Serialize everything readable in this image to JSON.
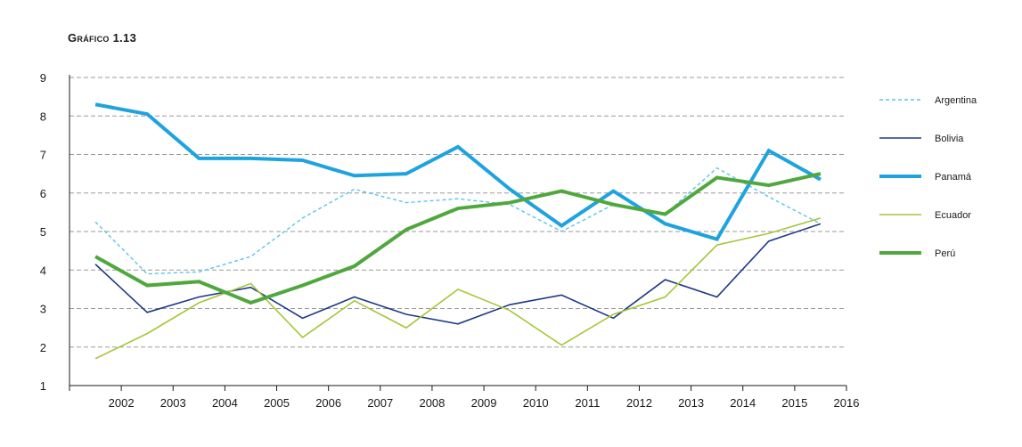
{
  "title": "Gráfico 1.13",
  "chart_data": {
    "type": "line",
    "title": "Gráfico 1.13",
    "x_ticks": [
      "2002",
      "2003",
      "2004",
      "2005",
      "2006",
      "2007",
      "2008",
      "2009",
      "2010",
      "2011",
      "2012",
      "2013",
      "2014",
      "2015",
      "2016"
    ],
    "x": [
      2001.5,
      2002.5,
      2003.5,
      2004.5,
      2005.5,
      2006.5,
      2007.5,
      2008.5,
      2009.5,
      2010.5,
      2011.5,
      2012.5,
      2013.5,
      2014.5,
      2015.5
    ],
    "xlim": [
      2001,
      2016
    ],
    "ylim": [
      1,
      9
    ],
    "y_ticks": [
      1,
      2,
      3,
      4,
      5,
      6,
      7,
      8,
      9
    ],
    "grid": "horizontal dashed",
    "legend_position": "right",
    "series": [
      {
        "name": "Argentina",
        "color": "#5cc3e8",
        "style": "dashed",
        "width": 1.4,
        "values": [
          5.25,
          3.9,
          3.95,
          4.35,
          5.35,
          6.1,
          5.75,
          5.85,
          5.7,
          5.0,
          5.7,
          5.45,
          6.65,
          5.9,
          5.2
        ]
      },
      {
        "name": "Bolivia",
        "color": "#1e3a84",
        "style": "solid",
        "width": 1.6,
        "values": [
          4.15,
          2.9,
          3.3,
          3.55,
          2.75,
          3.3,
          2.85,
          2.6,
          3.1,
          3.35,
          2.75,
          3.75,
          3.3,
          4.75,
          5.2
        ]
      },
      {
        "name": "Panamá",
        "color": "#1fa3de",
        "style": "solid",
        "width": 4,
        "values": [
          8.3,
          8.05,
          6.9,
          6.9,
          6.85,
          6.45,
          6.5,
          7.2,
          6.1,
          5.15,
          6.05,
          5.2,
          4.8,
          7.1,
          6.35
        ]
      },
      {
        "name": "Ecuador",
        "color": "#a6c63a",
        "style": "solid",
        "width": 1.6,
        "values": [
          1.7,
          2.35,
          3.15,
          3.65,
          2.25,
          3.2,
          2.5,
          3.5,
          2.95,
          2.05,
          2.85,
          3.3,
          4.65,
          4.95,
          5.35
        ]
      },
      {
        "name": "Perú",
        "color": "#4fa83c",
        "style": "solid",
        "width": 4,
        "values": [
          4.35,
          3.6,
          3.7,
          3.15,
          3.6,
          4.1,
          5.05,
          5.6,
          5.75,
          6.05,
          5.7,
          5.45,
          6.4,
          6.2,
          6.5
        ]
      }
    ]
  }
}
